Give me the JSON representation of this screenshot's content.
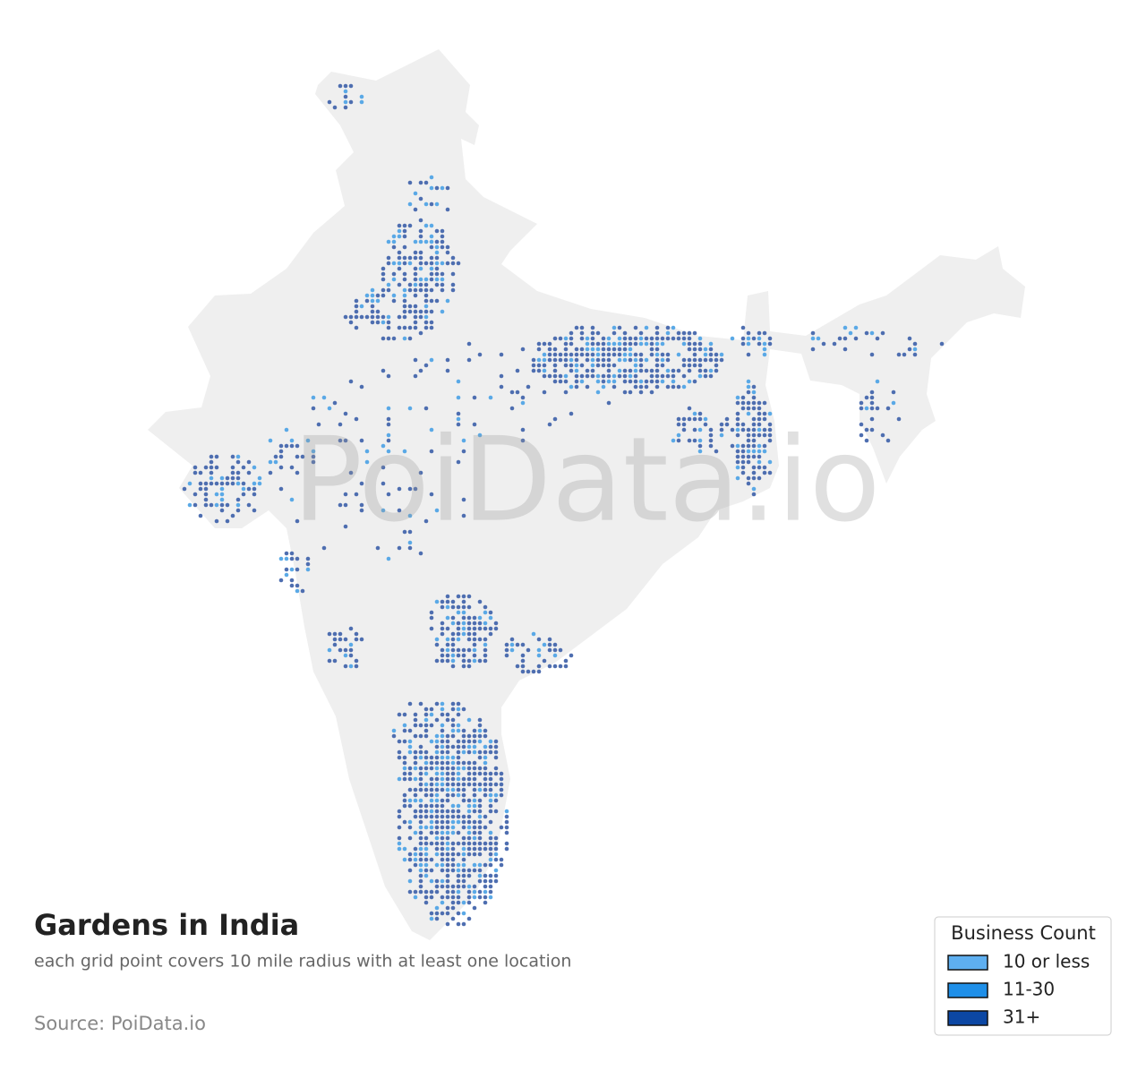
{
  "map": {
    "title": "Gardens in India",
    "subtitle": "each grid point covers 10 mile radius with at least one location",
    "source": "Source: PoiData.io",
    "watermark": "PoiData.io",
    "legend": {
      "title": "Business Count",
      "items": [
        {
          "label": "10 or less",
          "color": "#5eaff0"
        },
        {
          "label": "11-30",
          "color": "#1f8fe8"
        },
        {
          "label": "31+",
          "color": "#0c47a4"
        }
      ]
    }
  }
}
